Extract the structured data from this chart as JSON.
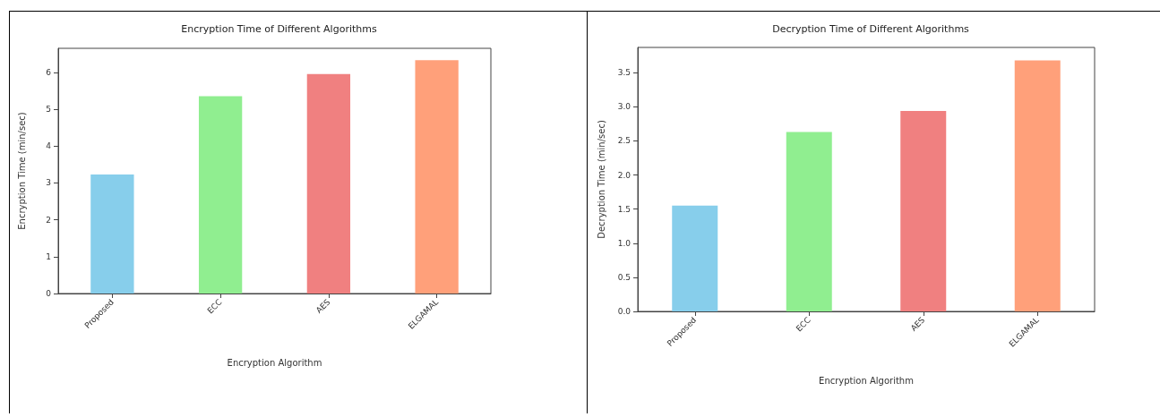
{
  "chart_data": [
    {
      "type": "bar",
      "title": "Encryption Time of Different Algorithms",
      "xlabel": "Encryption Algorithm",
      "ylabel": "Encryption Time (min/sec)",
      "categories": [
        "Proposed",
        "ECC",
        "AES",
        "ELGAMAL"
      ],
      "values": [
        3.23,
        5.35,
        5.95,
        6.33
      ],
      "colors": [
        "#87ceeb",
        "#90ee90",
        "#f08080",
        "#ffa07a"
      ],
      "ylim": [
        0,
        6.65
      ],
      "yticks": [
        0,
        1,
        2,
        3,
        4,
        5,
        6
      ],
      "grid": false
    },
    {
      "type": "bar",
      "title": "Decryption Time of Different Algorithms",
      "xlabel": "Encryption Algorithm",
      "ylabel": "Decryption Time (min/sec)",
      "categories": [
        "Proposed",
        "ECC",
        "AES",
        "ELGAMAL"
      ],
      "values": [
        1.55,
        2.63,
        2.94,
        3.68
      ],
      "colors": [
        "#87ceeb",
        "#90ee90",
        "#f08080",
        "#ffa07a"
      ],
      "ylim": [
        0,
        3.87
      ],
      "yticks": [
        {
          "value": 0,
          "label": "0.0"
        },
        {
          "value": 0.5,
          "label": "0.5"
        },
        {
          "value": 1,
          "label": "1.0"
        },
        {
          "value": 1.5,
          "label": "1.5"
        },
        {
          "value": 2,
          "label": "2.0"
        },
        {
          "value": 2.5,
          "label": "2.5"
        },
        {
          "value": 3,
          "label": "3.0"
        },
        {
          "value": 3.5,
          "label": "3.5"
        }
      ],
      "grid": false
    }
  ]
}
